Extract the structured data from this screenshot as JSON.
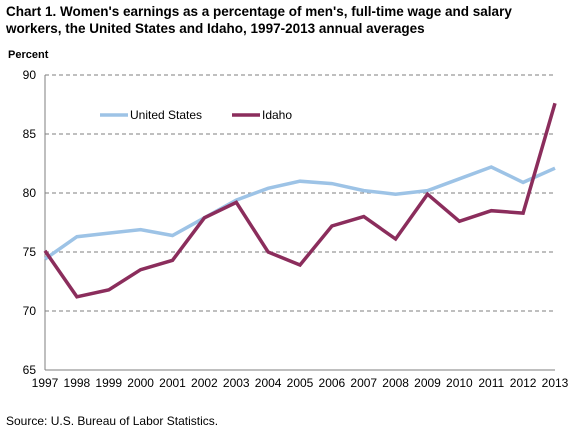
{
  "chart_data": {
    "type": "line",
    "title": "Chart 1. Women's earnings as a percentage of men's, full-time wage and salary workers, the United States and Idaho, 1997-2013  annual averages",
    "ylabel": "Percent",
    "xlabel": "",
    "x": [
      "1997",
      "1998",
      "1999",
      "2000",
      "2001",
      "2002",
      "2003",
      "2004",
      "2005",
      "2006",
      "2007",
      "2008",
      "2009",
      "2010",
      "2011",
      "2012",
      "2013"
    ],
    "ylim": [
      65,
      90
    ],
    "yticks": [
      65,
      70,
      75,
      80,
      85,
      90
    ],
    "grid": "horizontal dashed",
    "legend_position": "top-left",
    "series": [
      {
        "name": "United States",
        "color": "#9dc3e6",
        "values": [
          74.4,
          76.3,
          76.6,
          76.9,
          76.4,
          77.9,
          79.4,
          80.4,
          81.0,
          80.8,
          80.2,
          79.9,
          80.2,
          81.2,
          82.2,
          80.9,
          82.1
        ]
      },
      {
        "name": "Idaho",
        "color": "#8b2d5c",
        "values": [
          75.1,
          71.2,
          71.8,
          73.5,
          74.3,
          77.9,
          79.2,
          75.0,
          73.9,
          77.2,
          78.0,
          76.1,
          79.9,
          77.6,
          78.5,
          78.3,
          87.6
        ]
      }
    ]
  },
  "source": "Source: U.S.  Bureau of Labor Statistics."
}
